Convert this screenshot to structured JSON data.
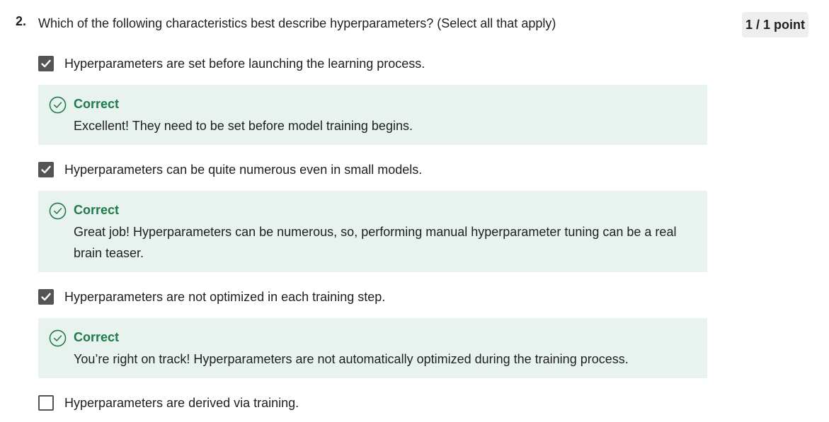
{
  "question": {
    "number": "2.",
    "text": "Which of the following characteristics best describe hyperparameters? (Select all that apply)",
    "score": "1 / 1 point"
  },
  "options": [
    {
      "label": "Hyperparameters are set before launching the learning process.",
      "checked": true,
      "feedback_title": "Correct",
      "feedback_text": "Excellent! They need to be set before model training begins."
    },
    {
      "label": "Hyperparameters can be quite numerous even in small models.",
      "checked": true,
      "feedback_title": "Correct",
      "feedback_text": "Great job! Hyperparameters can be numerous, so, performing manual hyperparameter tuning can be a real brain teaser."
    },
    {
      "label": "Hyperparameters are not optimized in each training step.",
      "checked": true,
      "feedback_title": "Correct",
      "feedback_text": "You’re right on track! Hyperparameters are not automatically optimized during the training process."
    },
    {
      "label": "Hyperparameters are derived via training.",
      "checked": false
    }
  ],
  "colors": {
    "correct_green": "#1e7a49",
    "feedback_bg": "#e8f2ee",
    "checkbox_gray": "#545454",
    "badge_bg": "#eeeeee"
  }
}
